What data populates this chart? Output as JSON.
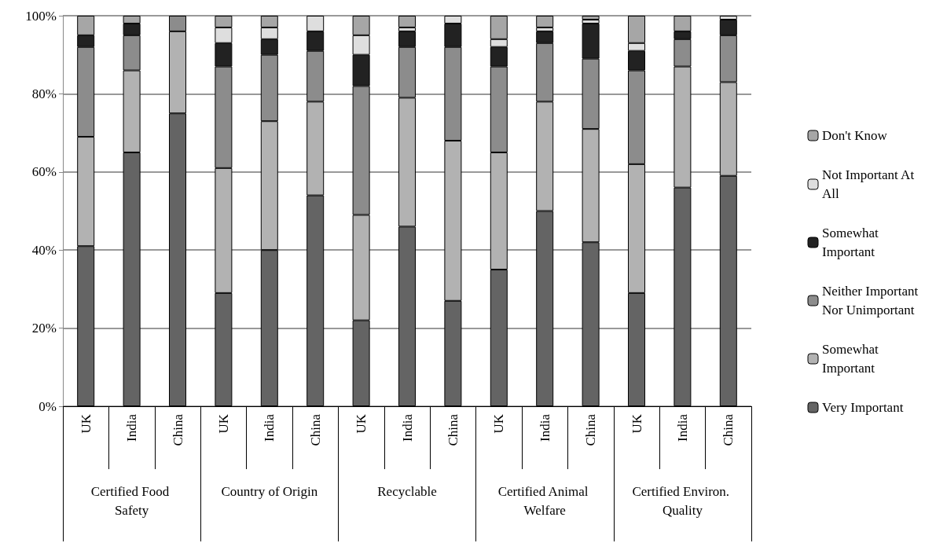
{
  "chart_data": {
    "type": "bar",
    "stacked": true,
    "legend": "right",
    "grid": "y",
    "categories": [
      "UK",
      "India",
      "China",
      "UK",
      "India",
      "China",
      "UK",
      "India",
      "China",
      "UK",
      "India",
      "China",
      "UK",
      "India",
      "China"
    ],
    "annotations": [
      "Certified Food Safety",
      "Country of Origin",
      "Recyclable",
      "Certified Animal Welfare",
      "Certified Environ. Quality"
    ],
    "ylim": [
      0,
      100
    ],
    "yticks": [
      {
        "value": 0,
        "label": "0%"
      },
      {
        "value": 20,
        "label": "20%"
      },
      {
        "value": 40,
        "label": "40%"
      },
      {
        "value": 60,
        "label": "60%"
      },
      {
        "value": 80,
        "label": "80%"
      },
      {
        "value": 100,
        "label": "100%"
      }
    ],
    "series": [
      {
        "name": "Very Important",
        "color": "#646464",
        "values": [
          41,
          65,
          75,
          29,
          40,
          54,
          22,
          46,
          27,
          35,
          50,
          42,
          29,
          56,
          59
        ]
      },
      {
        "name": "Somewhat Important",
        "color": "#b2b2b2",
        "values": [
          28,
          21,
          21,
          32,
          33,
          24,
          27,
          33,
          41,
          30,
          28,
          29,
          33,
          31,
          24
        ]
      },
      {
        "name": "Neither Important Nor Unimportant",
        "color": "#8c8c8c",
        "values": [
          23,
          9,
          4,
          26,
          17,
          13,
          33,
          13,
          24,
          22,
          15,
          18,
          24,
          7,
          12
        ]
      },
      {
        "name": "Somewhat Important",
        "color": "#222222",
        "values": [
          3,
          3,
          0,
          6,
          4,
          5,
          8,
          4,
          6,
          5,
          3,
          9,
          5,
          2,
          4
        ]
      },
      {
        "name": "Not Important At All",
        "color": "#dedede",
        "values": [
          0,
          0,
          0,
          4,
          3,
          4,
          5,
          1,
          2,
          2,
          1,
          1,
          2,
          0,
          1
        ]
      },
      {
        "name": "Don't Know",
        "color": "#a6a6a6",
        "values": [
          5,
          2,
          0,
          3,
          3,
          0,
          5,
          3,
          0,
          6,
          3,
          1,
          7,
          4,
          0
        ]
      }
    ]
  }
}
